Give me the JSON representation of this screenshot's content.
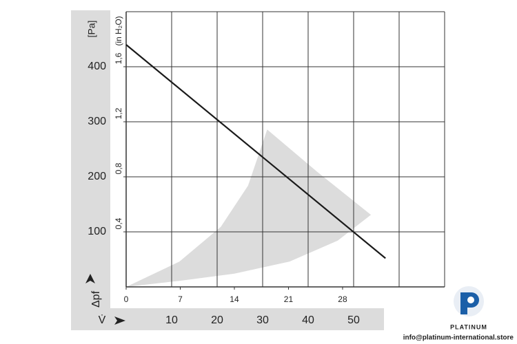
{
  "chart_data": {
    "type": "line",
    "y_unit_label": "[Pa]",
    "y2_unit_label": "(in H₂O)",
    "y_axis_title": "Δpf",
    "x_axis_title": "V̇",
    "xlim": [
      0,
      70
    ],
    "xticks": [
      10,
      20,
      30,
      40,
      50,
      {
        "value": 60,
        "label": null
      }
    ],
    "x2lim": [
      0,
      41.2
    ],
    "x2ticks": [
      0,
      7,
      14,
      21,
      28
    ],
    "ylim": [
      0,
      500
    ],
    "yticks": [
      100,
      200,
      300,
      400
    ],
    "y2lim": [
      0,
      2.0
    ],
    "y2ticks": [
      {
        "value": 0.4,
        "label": "0,4"
      },
      {
        "value": 0.8,
        "label": "0,8"
      },
      {
        "value": 1.2,
        "label": "1,2"
      },
      {
        "value": 1.6,
        "label": "1,6"
      }
    ],
    "grid": true,
    "series": [
      {
        "color": "#1a1a1a",
        "x": [
          0,
          57
        ],
        "values": [
          440,
          52
        ]
      }
    ],
    "region": {
      "color": "#dcdcdc",
      "x": [
        0,
        11.7,
        23.8,
        35.9,
        46.5,
        53.8,
        42,
        31,
        26.8,
        20.8,
        11.7
      ],
      "values": [
        0,
        11,
        24,
        46,
        84,
        131,
        209,
        286,
        184,
        109,
        46
      ]
    }
  },
  "logo": {
    "name": "PLATINUM",
    "contact": "info@platinum-international.store"
  }
}
